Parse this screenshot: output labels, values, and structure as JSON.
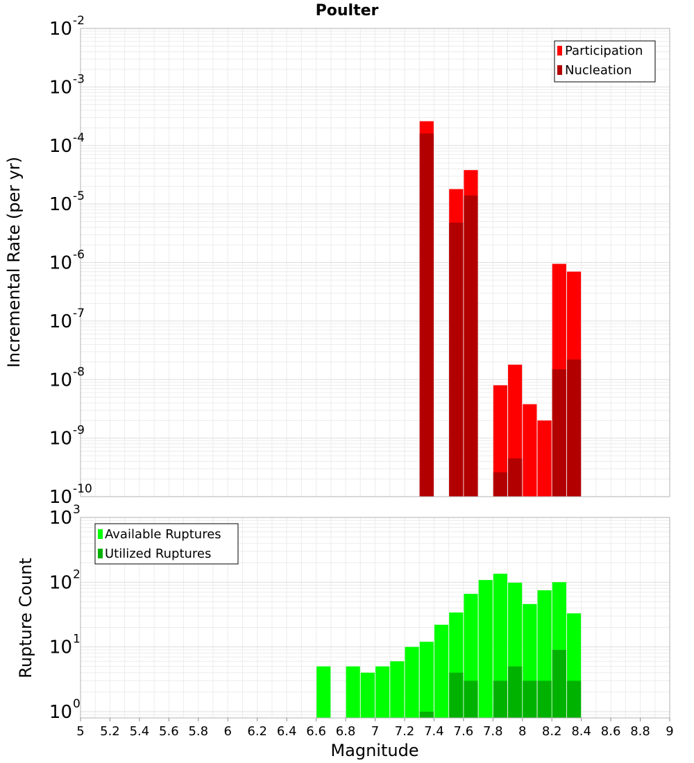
{
  "chart_data": [
    {
      "type": "bar",
      "title": "Poulter",
      "ylabel": "Incremental Rate (per yr)",
      "yscale": "log",
      "ylim": [
        1e-10,
        0.01
      ],
      "xlim": [
        5,
        9
      ],
      "grid": true,
      "legend_position": "top-right",
      "y_ticks": [
        {
          "base": "10",
          "exp": "-10"
        },
        {
          "base": "10",
          "exp": "-9"
        },
        {
          "base": "10",
          "exp": "-8"
        },
        {
          "base": "10",
          "exp": "-7"
        },
        {
          "base": "10",
          "exp": "-6"
        },
        {
          "base": "10",
          "exp": "-5"
        },
        {
          "base": "10",
          "exp": "-4"
        },
        {
          "base": "10",
          "exp": "-3"
        },
        {
          "base": "10",
          "exp": "-2"
        }
      ],
      "series": [
        {
          "name": "Participation",
          "color": "#ff0000",
          "points": [
            {
              "x": 7.35,
              "y": 0.00026
            },
            {
              "x": 7.55,
              "y": 1.8e-05
            },
            {
              "x": 7.65,
              "y": 3.8e-05
            },
            {
              "x": 7.85,
              "y": 8e-09
            },
            {
              "x": 7.95,
              "y": 1.8e-08
            },
            {
              "x": 8.05,
              "y": 3.8e-09
            },
            {
              "x": 8.15,
              "y": 2e-09
            },
            {
              "x": 8.25,
              "y": 9.5e-07
            },
            {
              "x": 8.35,
              "y": 7e-07
            }
          ]
        },
        {
          "name": "Nucleation",
          "color": "#b20000",
          "points": [
            {
              "x": 7.35,
              "y": 0.00016
            },
            {
              "x": 7.55,
              "y": 4.8e-06
            },
            {
              "x": 7.65,
              "y": 1.4e-05
            },
            {
              "x": 7.85,
              "y": 2.6e-10
            },
            {
              "x": 7.95,
              "y": 4.5e-10
            },
            {
              "x": 8.25,
              "y": 1.5e-08
            },
            {
              "x": 8.35,
              "y": 2.2e-08
            }
          ]
        }
      ]
    },
    {
      "type": "bar",
      "xlabel": "Magnitude",
      "ylabel": "Rupture Count",
      "yscale": "log",
      "ylim": [
        0.8,
        1000
      ],
      "xlim": [
        5,
        9
      ],
      "grid": true,
      "legend_position": "top-left",
      "y_ticks": [
        {
          "base": "10",
          "exp": "0"
        },
        {
          "base": "10",
          "exp": "1"
        },
        {
          "base": "10",
          "exp": "2"
        },
        {
          "base": "10",
          "exp": "3"
        }
      ],
      "x_ticks": [
        "5",
        "5.2",
        "5.4",
        "5.6",
        "5.8",
        "6",
        "6.2",
        "6.4",
        "6.6",
        "6.8",
        "7",
        "7.2",
        "7.4",
        "7.6",
        "7.8",
        "8",
        "8.2",
        "8.4",
        "8.6",
        "8.8",
        "9"
      ],
      "series": [
        {
          "name": "Available Ruptures",
          "color": "#00ff00",
          "points": [
            {
              "x": 6.65,
              "y": 5
            },
            {
              "x": 6.85,
              "y": 5
            },
            {
              "x": 6.95,
              "y": 4
            },
            {
              "x": 7.05,
              "y": 5
            },
            {
              "x": 7.15,
              "y": 6
            },
            {
              "x": 7.25,
              "y": 10
            },
            {
              "x": 7.35,
              "y": 12
            },
            {
              "x": 7.45,
              "y": 22
            },
            {
              "x": 7.55,
              "y": 34
            },
            {
              "x": 7.65,
              "y": 66
            },
            {
              "x": 7.75,
              "y": 108
            },
            {
              "x": 7.85,
              "y": 135
            },
            {
              "x": 7.95,
              "y": 98
            },
            {
              "x": 8.05,
              "y": 46
            },
            {
              "x": 8.15,
              "y": 75
            },
            {
              "x": 8.25,
              "y": 100
            },
            {
              "x": 8.35,
              "y": 33
            }
          ]
        },
        {
          "name": "Utilized Ruptures",
          "color": "#00b200",
          "points": [
            {
              "x": 7.35,
              "y": 1
            },
            {
              "x": 7.55,
              "y": 4
            },
            {
              "x": 7.65,
              "y": 3
            },
            {
              "x": 7.85,
              "y": 3
            },
            {
              "x": 7.95,
              "y": 5
            },
            {
              "x": 8.05,
              "y": 3
            },
            {
              "x": 8.15,
              "y": 3
            },
            {
              "x": 8.25,
              "y": 9
            },
            {
              "x": 8.35,
              "y": 3
            }
          ]
        }
      ]
    }
  ]
}
